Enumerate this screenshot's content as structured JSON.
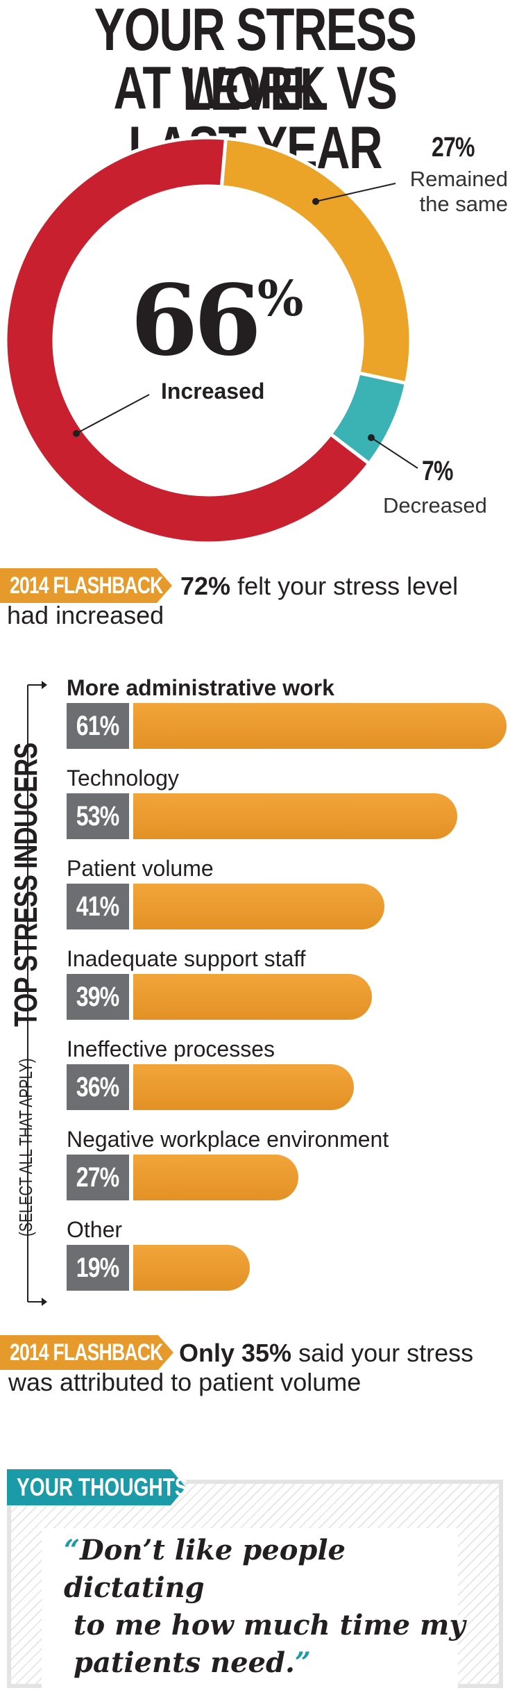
{
  "title": {
    "line1": "YOUR STRESS LEVEL",
    "line2": "AT WORK VS LAST YEAR"
  },
  "colors": {
    "increased": "#c8202f",
    "same": "#eba427",
    "decreased": "#3bb3b5",
    "bar": "#e8992c",
    "tag": "#e59a2b",
    "thoughts": "#1b9aa8"
  },
  "chart_data": [
    {
      "type": "pie",
      "title": "YOUR STRESS LEVEL AT WORK VS LAST YEAR",
      "slices": [
        {
          "label": "Remained the same",
          "value": 27,
          "display": "27%"
        },
        {
          "label": "Decreased",
          "value": 7,
          "display": "7%"
        },
        {
          "label": "Increased",
          "value": 66,
          "display": "66"
        }
      ],
      "center_value": "66",
      "center_suffix": "%",
      "center_label": "Increased"
    },
    {
      "type": "bar",
      "title": "TOP STRESS INDUCERS",
      "subtitle": "(SELECT ALL THAT APPLY)",
      "categories": [
        "More administrative work",
        "Technology",
        "Patient volume",
        "Inadequate support staff",
        "Ineffective processes",
        "Negative workplace environment",
        "Other"
      ],
      "values": [
        61,
        53,
        41,
        39,
        36,
        27,
        19
      ],
      "value_labels": [
        "61%",
        "53%",
        "41%",
        "39%",
        "36%",
        "27%",
        "19%"
      ],
      "xlim": [
        0,
        61
      ]
    }
  ],
  "flashback1": {
    "tag": "2014 FLASHBACK",
    "bold": "72%",
    "text": " felt your stress level",
    "line2": "had increased"
  },
  "flashback2": {
    "tag": "2014 FLASHBACK",
    "bold1": "Only 35%",
    "text": " said your stress",
    "line2": "was attributed to patient volume"
  },
  "thoughts": {
    "tag": "YOUR THOUGHTS",
    "open": "“",
    "line1": "Don’t like people dictating",
    "line2": "to me how much time my",
    "line3": "patients need.",
    "close": "”"
  }
}
